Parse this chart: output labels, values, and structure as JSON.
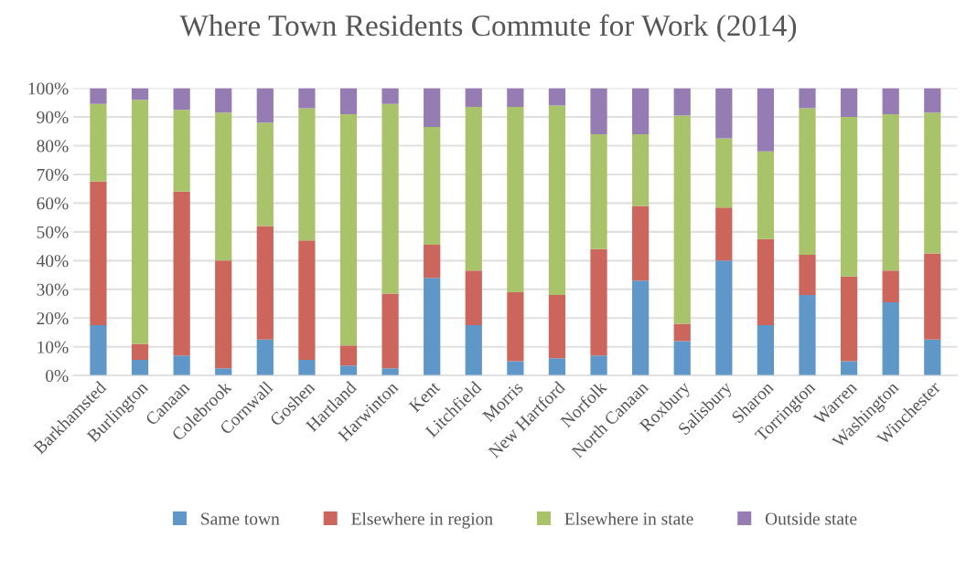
{
  "chart_data": {
    "type": "bar",
    "title": "Where Town Residents Commute for Work (2014)",
    "stacked": true,
    "categories": [
      "Barkhamsted",
      "Burlington",
      "Canaan",
      "Colebrook",
      "Cornwall",
      "Goshen",
      "Hartland",
      "Harwinton",
      "Kent",
      "Litchfield",
      "Morris",
      "New Hartford",
      "Norfolk",
      "North Canaan",
      "Roxbury",
      "Salisbury",
      "Sharon",
      "Torrington",
      "Warren",
      "Washington",
      "Winchester"
    ],
    "series": [
      {
        "name": "Same town",
        "color": "#5f97c9",
        "values": [
          17.5,
          5.5,
          7,
          2.5,
          12.5,
          5.5,
          3.5,
          2.5,
          34,
          17.5,
          5,
          6,
          7,
          33,
          12,
          40,
          17.5,
          28,
          5,
          25.5,
          12.5
        ]
      },
      {
        "name": "Elsewhere in region",
        "color": "#cc665c",
        "values": [
          50,
          5.5,
          57,
          37.5,
          39.5,
          41.5,
          7,
          26,
          11.5,
          19,
          24,
          22,
          37,
          26,
          6,
          18.5,
          30,
          14,
          29.5,
          11,
          30
        ]
      },
      {
        "name": "Elsewhere in state",
        "color": "#a9c36a",
        "values": [
          27,
          85,
          28.5,
          51.5,
          36,
          46,
          80.5,
          66,
          41,
          57,
          64.5,
          66,
          40,
          25,
          72.5,
          24,
          30.5,
          51,
          55.5,
          54.5,
          49
        ]
      },
      {
        "name": "Outside state",
        "color": "#957cb3",
        "values": [
          5.5,
          4,
          7.5,
          8.5,
          12,
          7,
          9,
          5.5,
          13.5,
          6.5,
          6.5,
          6,
          16,
          16,
          9.5,
          17.5,
          22,
          7,
          10,
          9,
          8.5
        ]
      }
    ],
    "ylim": [
      0,
      100
    ],
    "yticks": [
      {
        "value": 0,
        "label": "0%"
      },
      {
        "value": 10,
        "label": "10%"
      },
      {
        "value": 20,
        "label": "20%"
      },
      {
        "value": 30,
        "label": "30%"
      },
      {
        "value": 40,
        "label": "40%"
      },
      {
        "value": 50,
        "label": "50%"
      },
      {
        "value": 60,
        "label": "60%"
      },
      {
        "value": 70,
        "label": "70%"
      },
      {
        "value": 80,
        "label": "80%"
      },
      {
        "value": 90,
        "label": "90%"
      },
      {
        "value": 100,
        "label": "100%"
      }
    ],
    "grid": "y",
    "legend": "bottom"
  }
}
